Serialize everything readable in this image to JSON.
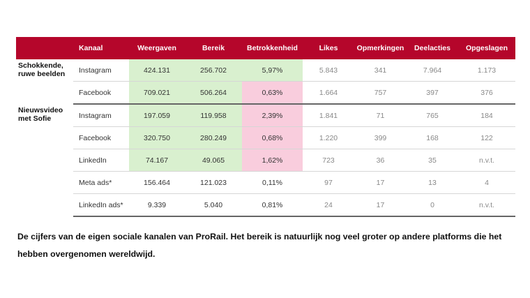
{
  "colors": {
    "header": "#b5062b",
    "green": "#d9f0cf",
    "pink": "#f9cddd"
  },
  "table": {
    "headers": [
      "",
      "Kanaal",
      "Weergaven",
      "Bereik",
      "Betrokkenheid",
      "Likes",
      "Opmerkingen",
      "Deelacties",
      "Opgeslagen"
    ],
    "groups": [
      {
        "label": "Schokkende, ruwe beelden",
        "rows": [
          {
            "kanaal": "Instagram",
            "values": [
              "424.131",
              "256.702",
              "5,97%",
              "5.843",
              "341",
              "7.964",
              "1.173"
            ],
            "highlight": [
              "green",
              "green",
              "green",
              "",
              "",
              "",
              ""
            ]
          },
          {
            "kanaal": "Facebook",
            "values": [
              "709.021",
              "506.264",
              "0,63%",
              "1.664",
              "757",
              "397",
              "376"
            ],
            "highlight": [
              "green",
              "green",
              "pink",
              "",
              "",
              "",
              ""
            ]
          }
        ]
      },
      {
        "label": "Nieuwsvideo met Sofie",
        "rows": [
          {
            "kanaal": "Instagram",
            "values": [
              "197.059",
              "119.958",
              "2,39%",
              "1.841",
              "71",
              "765",
              "184"
            ],
            "highlight": [
              "green",
              "green",
              "pink",
              "",
              "",
              "",
              ""
            ]
          },
          {
            "kanaal": "Facebook",
            "values": [
              "320.750",
              "280.249",
              "0,68%",
              "1.220",
              "399",
              "168",
              "122"
            ],
            "highlight": [
              "green",
              "green",
              "pink",
              "",
              "",
              "",
              ""
            ]
          },
          {
            "kanaal": "LinkedIn",
            "values": [
              "74.167",
              "49.065",
              "1,62%",
              "723",
              "36",
              "35",
              "n.v.t."
            ],
            "highlight": [
              "green",
              "green",
              "pink",
              "",
              "",
              "",
              ""
            ]
          },
          {
            "kanaal": "Meta ads*",
            "values": [
              "156.464",
              "121.023",
              "0,11%",
              "97",
              "17",
              "13",
              "4"
            ],
            "highlight": [
              "",
              "",
              "",
              "",
              "",
              "",
              ""
            ]
          },
          {
            "kanaal": "LinkedIn ads*",
            "values": [
              "9.339",
              "5.040",
              "0,81%",
              "24",
              "17",
              "0",
              "n.v.t."
            ],
            "highlight": [
              "",
              "",
              "",
              "",
              "",
              "",
              ""
            ]
          }
        ]
      }
    ]
  },
  "caption": "De cijfers van de eigen sociale kanalen van ProRail. Het bereik is natuurlijk nog veel groter op andere platforms die het hebben overgenomen wereldwijd."
}
